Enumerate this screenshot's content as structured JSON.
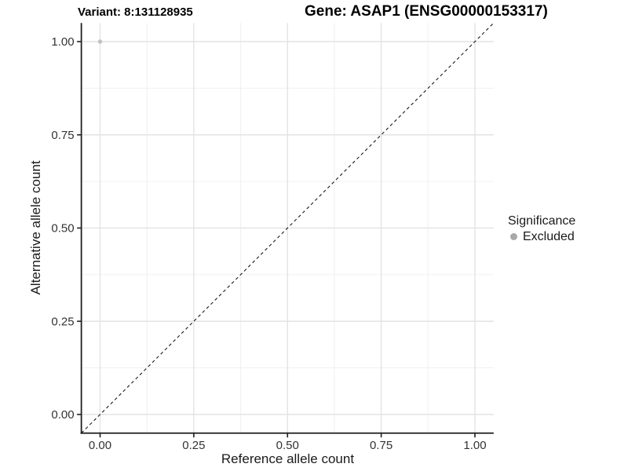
{
  "titles": {
    "variant": "Variant: 8:131128935",
    "gene": "Gene: ASAP1 (ENSG00000153317)"
  },
  "legend": {
    "title": "Significance",
    "items": [
      {
        "label": "Excluded",
        "color": "#a8a8a8",
        "marker": "circle"
      }
    ]
  },
  "chart_data": {
    "type": "scatter",
    "title": "Variant: 8:131128935 | Gene: ASAP1 (ENSG00000153317)",
    "xlabel": "Reference allele count",
    "ylabel": "Alternative allele count",
    "xlim": [
      -0.05,
      1.05
    ],
    "ylim": [
      -0.05,
      1.05
    ],
    "x_ticks": {
      "values": [
        0,
        0.25,
        0.5,
        0.75,
        1
      ],
      "labels": [
        "0.00",
        "0.25",
        "0.50",
        "0.75",
        "1.00"
      ],
      "minor": [
        0.125,
        0.375,
        0.625,
        0.875
      ]
    },
    "y_ticks": {
      "values": [
        0,
        0.25,
        0.5,
        0.75,
        1
      ],
      "labels": [
        "0.00",
        "0.25",
        "0.50",
        "0.75",
        "1.00"
      ],
      "minor": [
        0.125,
        0.375,
        0.625,
        0.875
      ]
    },
    "series": [
      {
        "name": "Excluded",
        "color": "#c2c2c2",
        "points": [
          {
            "x": 0,
            "y": 1
          }
        ]
      }
    ],
    "reference_line": {
      "kind": "identity",
      "from": [
        -0.05,
        -0.05
      ],
      "to": [
        1.05,
        1.05
      ],
      "style": "dashed",
      "color": "#1a1a1a"
    },
    "grid": {
      "major_color": "#e3e3e3",
      "minor_color": "#f0f0f0",
      "background": "#ffffff"
    },
    "axis": {
      "line_color": "#1f1f1f",
      "tick_color": "#1f1f1f",
      "tick_label_color": "#333333"
    },
    "legend_position": "right"
  }
}
